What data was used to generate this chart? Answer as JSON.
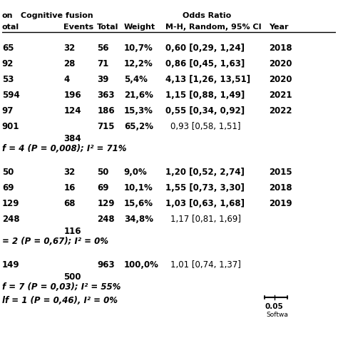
{
  "title_col1": "on",
  "title_col2": "Cognitive fusion",
  "title_col3": "Odds Ratio",
  "header_row": [
    "otal",
    "Events",
    "Total",
    "Weight",
    "M-H, Random, 95% CI",
    "Year"
  ],
  "section1_rows": [
    {
      "total_left": "65",
      "events": "32",
      "total_right": "56",
      "weight": "10,7%",
      "or": "0,60 [0,29, 1,24]",
      "year": "2018"
    },
    {
      "total_left": "92",
      "events": "28",
      "total_right": "71",
      "weight": "12,2%",
      "or": "0,86 [0,45, 1,63]",
      "year": "2020"
    },
    {
      "total_left": "53",
      "events": "4",
      "total_right": "39",
      "weight": "5,4%",
      "or": "4,13 [1,26, 13,51]",
      "year": "2020"
    },
    {
      "total_left": "594",
      "events": "196",
      "total_right": "363",
      "weight": "21,6%",
      "or": "1,15 [0,88, 1,49]",
      "year": "2021"
    },
    {
      "total_left": "97",
      "events": "124",
      "total_right": "186",
      "weight": "15,3%",
      "or": "0,55 [0,34, 0,92]",
      "year": "2022"
    }
  ],
  "section1_subtotal": {
    "total_left": "901",
    "total_right": "715",
    "weight": "65,2%",
    "or": "0,93 [0,58, 1,51]"
  },
  "section1_events_subtotal": "384",
  "section1_footer": "f = 4 (P = 0,008); I² = 71%",
  "section2_rows": [
    {
      "total_left": "50",
      "events": "32",
      "total_right": "50",
      "weight": "9,0%",
      "or": "1,20 [0,52, 2,74]",
      "year": "2015"
    },
    {
      "total_left": "69",
      "events": "16",
      "total_right": "69",
      "weight": "10,1%",
      "or": "1,55 [0,73, 3,30]",
      "year": "2018"
    },
    {
      "total_left": "129",
      "events": "68",
      "total_right": "129",
      "weight": "15,6%",
      "or": "1,03 [0,63, 1,68]",
      "year": "2019"
    }
  ],
  "section2_subtotal": {
    "total_left": "248",
    "total_right": "248",
    "weight": "34,8%",
    "or": "1,17 [0,81, 1,69]"
  },
  "section2_events_subtotal": "116",
  "section2_footer": "= 2 (P = 0,67); I² = 0%",
  "overall_row": {
    "total_left": "149",
    "total_right": "963",
    "weight": "100,0%",
    "or": "1,01 [0,74, 1,37]"
  },
  "overall_events": "500",
  "overall_footer1": "f = 7 (P = 0,03); I² = 55%",
  "overall_footer2": "lf = 1 (P = 0,46), I² = 0%",
  "scale_label": "0.05",
  "scale_sublabel": "Softwa",
  "bg_color": "#ffffff"
}
